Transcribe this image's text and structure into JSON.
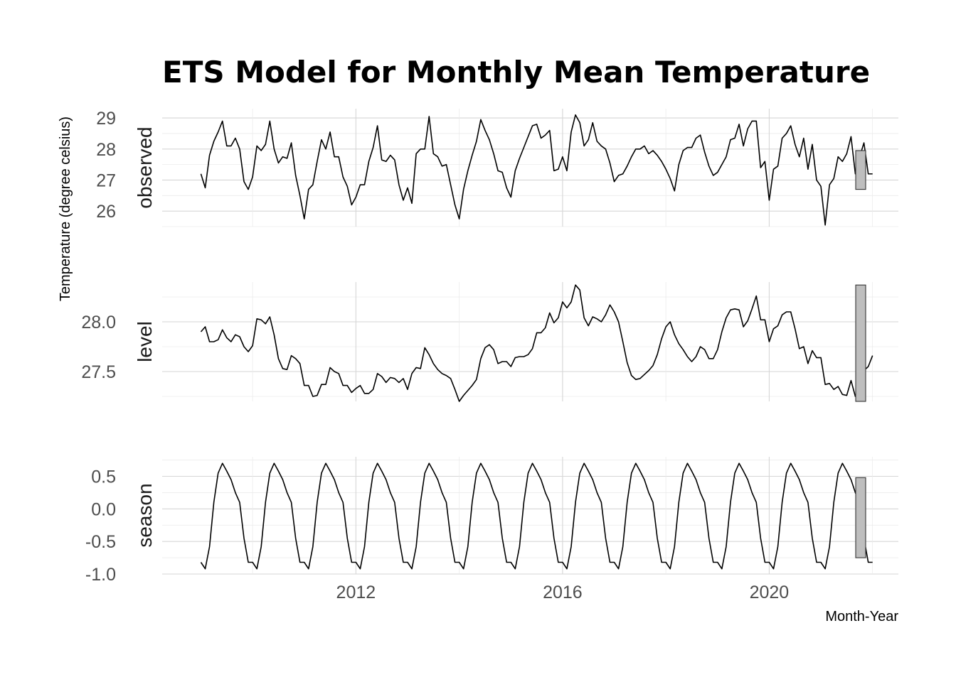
{
  "chart_data": {
    "type": "line",
    "title": "ETS Model for Monthly Mean Temperature",
    "xlabel": "Month-Year",
    "ylabel": "Temperature (degree celsius)",
    "x_start": "2009-01",
    "x_end": "2021-12",
    "x_ticks": [
      "2012",
      "2016",
      "2020"
    ],
    "x_lim": [
      "2008-04",
      "2022-07"
    ],
    "grid": true,
    "panels": [
      {
        "name": "observed",
        "ylim": [
          25.5,
          29.3
        ],
        "y_ticks": [
          "26",
          "27",
          "28",
          "29"
        ],
        "values": [
          27.2,
          26.75,
          27.8,
          28.25,
          28.55,
          28.9,
          28.1,
          28.1,
          28.35,
          28.0,
          26.95,
          26.7,
          27.1,
          28.1,
          27.95,
          28.15,
          28.9,
          28.0,
          27.55,
          27.75,
          27.7,
          28.2,
          27.15,
          26.5,
          25.75,
          26.7,
          26.85,
          27.6,
          28.3,
          28.0,
          28.55,
          27.75,
          27.75,
          27.1,
          26.8,
          26.2,
          26.45,
          26.85,
          26.85,
          27.6,
          28.05,
          28.75,
          27.65,
          27.6,
          27.8,
          27.65,
          26.85,
          26.35,
          26.75,
          26.25,
          27.85,
          28.0,
          28.0,
          29.05,
          27.85,
          27.75,
          27.45,
          27.5,
          26.85,
          26.2,
          25.75,
          26.7,
          27.3,
          27.8,
          28.25,
          28.95,
          28.6,
          28.3,
          27.85,
          27.3,
          27.25,
          26.75,
          26.45,
          27.3,
          27.7,
          28.05,
          28.4,
          28.75,
          28.8,
          28.35,
          28.45,
          28.6,
          27.3,
          27.35,
          27.75,
          27.3,
          28.55,
          29.1,
          28.85,
          28.1,
          28.3,
          28.85,
          28.25,
          28.1,
          28.0,
          27.55,
          26.95,
          27.15,
          27.2,
          27.45,
          27.75,
          28.0,
          28.0,
          28.1,
          27.85,
          27.95,
          27.8,
          27.6,
          27.35,
          27.05,
          26.65,
          27.5,
          27.95,
          28.05,
          28.05,
          28.35,
          28.45,
          27.9,
          27.45,
          27.15,
          27.25,
          27.5,
          27.75,
          28.3,
          28.35,
          28.8,
          28.1,
          28.65,
          28.9,
          28.9,
          27.4,
          27.6,
          26.35,
          27.35,
          27.45,
          28.35,
          28.5,
          28.75,
          28.15,
          27.75,
          28.35,
          27.35,
          28.15,
          27.0,
          26.8,
          25.55,
          26.85,
          27.05,
          27.75,
          27.6,
          27.85,
          28.4,
          27.2,
          27.75,
          28.2,
          27.2,
          27.2
        ],
        "range_bar": [
          26.7,
          27.95
        ]
      },
      {
        "name": "level",
        "ylim": [
          27.2,
          28.4
        ],
        "y_ticks": [
          "27.5",
          "28.0"
        ],
        "values": [
          27.9,
          27.95,
          27.8,
          27.8,
          27.82,
          27.92,
          27.84,
          27.8,
          27.87,
          27.85,
          27.75,
          27.7,
          27.76,
          28.03,
          28.02,
          27.98,
          28.05,
          27.87,
          27.63,
          27.53,
          27.52,
          27.66,
          27.63,
          27.58,
          27.36,
          27.36,
          27.25,
          27.26,
          27.37,
          27.37,
          27.54,
          27.5,
          27.48,
          27.36,
          27.36,
          27.29,
          27.33,
          27.36,
          27.28,
          27.28,
          27.32,
          27.48,
          27.45,
          27.39,
          27.44,
          27.43,
          27.39,
          27.43,
          27.32,
          27.48,
          27.54,
          27.53,
          27.74,
          27.67,
          27.58,
          27.52,
          27.48,
          27.46,
          27.43,
          27.32,
          27.2,
          27.26,
          27.31,
          27.36,
          27.42,
          27.63,
          27.74,
          27.77,
          27.72,
          27.58,
          27.6,
          27.6,
          27.55,
          27.64,
          27.65,
          27.65,
          27.67,
          27.73,
          27.89,
          27.89,
          27.94,
          28.09,
          27.99,
          28.04,
          28.2,
          28.14,
          28.2,
          28.37,
          28.32,
          28.04,
          27.96,
          28.05,
          28.03,
          28.0,
          28.07,
          28.17,
          28.1,
          28.0,
          27.8,
          27.59,
          27.46,
          27.42,
          27.43,
          27.47,
          27.51,
          27.56,
          27.67,
          27.83,
          27.95,
          28.0,
          27.87,
          27.78,
          27.72,
          27.65,
          27.6,
          27.65,
          27.75,
          27.72,
          27.63,
          27.63,
          27.72,
          27.9,
          28.04,
          28.12,
          28.13,
          28.12,
          27.95,
          28.01,
          28.13,
          28.26,
          28.02,
          28.02,
          27.8,
          27.93,
          27.96,
          28.07,
          28.1,
          28.1,
          27.93,
          27.73,
          27.75,
          27.58,
          27.71,
          27.64,
          27.64,
          27.37,
          27.38,
          27.32,
          27.35,
          27.27,
          27.26,
          27.41,
          27.25,
          27.33,
          27.51,
          27.55,
          27.66
        ],
        "range_bar": [
          27.2,
          28.37
        ]
      },
      {
        "name": "season",
        "ylim": [
          -1.0,
          0.8
        ],
        "y_ticks": [
          "-1.0",
          "-0.5",
          "0.0",
          "0.5"
        ],
        "values": [
          -0.82,
          -0.92,
          -0.58,
          0.1,
          0.55,
          0.7,
          0.58,
          0.45,
          0.25,
          0.1,
          -0.45,
          -0.82
        ],
        "repeat": "monthly",
        "range_bar": [
          -0.75,
          0.48
        ]
      }
    ]
  }
}
